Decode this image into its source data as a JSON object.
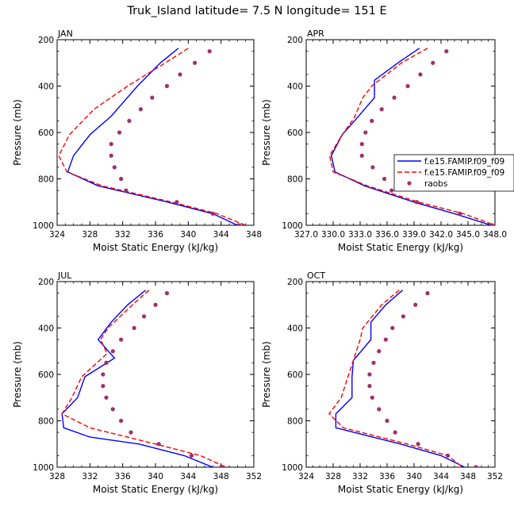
{
  "title": "Truk_Island  latitude= 7.5 N longitude= 151 E",
  "legend_labels": [
    "f.e15.FAMIP.f09_f09",
    "f.e15.FAMIP.f09_f09",
    "raobs"
  ],
  "colors": {
    "model1": "#0000ff",
    "model2": "#ff0000",
    "raobs": "#a0306a"
  },
  "chart_data": [
    {
      "type": "line",
      "panel": "JAN",
      "xlabel": "Moist Static Energy (kJ/kg)",
      "ylabel": "Pressure (mb)",
      "xlim": [
        324,
        348
      ],
      "xticks": [
        324,
        328,
        332,
        336,
        340,
        344,
        348
      ],
      "xtick_labels": [
        "324",
        "328",
        "332",
        "336",
        "340",
        "344",
        "348"
      ],
      "ylim": [
        200,
        1000
      ],
      "yticks": [
        200,
        400,
        600,
        800,
        1000
      ],
      "series": [
        {
          "name": "f.e15.FAMIP.f09_f09",
          "style": "solid",
          "p": [
            237,
            300,
            400,
            530,
            610,
            700,
            770,
            830,
            900,
            950,
            1000
          ],
          "mse": [
            338.8,
            336.6,
            333.8,
            330.6,
            328.0,
            326.0,
            325.3,
            329.0,
            337.5,
            343.0,
            346.0
          ]
        },
        {
          "name": "f.e15.FAMIP.f09_f09",
          "style": "dashed",
          "p": [
            237,
            300,
            400,
            500,
            610,
            700,
            770,
            830,
            900,
            950,
            1000
          ],
          "mse": [
            340.0,
            337.2,
            332.6,
            328.5,
            325.5,
            324.2,
            325.2,
            329.5,
            338.0,
            343.5,
            347.0
          ]
        },
        {
          "name": "raobs",
          "style": "dots",
          "p": [
            250,
            300,
            350,
            400,
            450,
            500,
            550,
            600,
            650,
            700,
            750,
            800,
            850,
            900,
            950,
            1000
          ],
          "mse": [
            342.6,
            340.8,
            339.0,
            337.4,
            335.6,
            334.2,
            332.8,
            331.6,
            330.6,
            330.6,
            331.0,
            331.8,
            332.4,
            338.6,
            343.0,
            346.2
          ]
        }
      ]
    },
    {
      "type": "line",
      "panel": "APR",
      "xlabel": "Moist Static Energy (kJ/kg)",
      "ylabel": "Pressure (mb)",
      "xlim": [
        327,
        348
      ],
      "xticks": [
        327,
        330,
        333,
        336,
        339,
        342,
        345,
        348
      ],
      "xtick_labels": [
        "327.0",
        "330.0",
        "333.0",
        "336.0",
        "339.0",
        "342.0",
        "345.0",
        "348.0"
      ],
      "ylim": [
        200,
        1000
      ],
      "yticks": [
        200,
        400,
        600,
        800,
        1000
      ],
      "series": [
        {
          "name": "f.e15.FAMIP.f09_f09",
          "style": "solid",
          "p": [
            237,
            300,
            375,
            450,
            540,
            610,
            700,
            770,
            830,
            900,
            950,
            1000
          ],
          "mse": [
            339.6,
            337.2,
            334.6,
            334.6,
            332.6,
            331.0,
            329.8,
            330.2,
            333.5,
            339.0,
            343.5,
            347.6
          ]
        },
        {
          "name": "f.e15.FAMIP.f09_f09",
          "style": "dashed",
          "p": [
            237,
            300,
            400,
            450,
            540,
            610,
            700,
            770,
            830,
            900,
            950,
            1000
          ],
          "mse": [
            340.5,
            337.6,
            334.3,
            333.3,
            332.3,
            331.0,
            329.6,
            330.0,
            333.8,
            339.5,
            344.5,
            348.0
          ]
        },
        {
          "name": "raobs",
          "style": "dots",
          "p": [
            250,
            300,
            350,
            400,
            450,
            500,
            550,
            600,
            650,
            700,
            750,
            800,
            850,
            900,
            950,
            1000
          ],
          "mse": [
            342.6,
            341.1,
            339.7,
            338.3,
            336.8,
            335.4,
            334.3,
            333.6,
            333.2,
            333.2,
            334.4,
            335.7,
            336.5,
            339.3,
            344.1,
            347.7
          ]
        }
      ]
    },
    {
      "type": "line",
      "panel": "JUL",
      "xlabel": "Moist Static Energy (kJ/kg)",
      "ylabel": "Pressure (mb)",
      "xlim": [
        328,
        352
      ],
      "xticks": [
        328,
        332,
        336,
        340,
        344,
        348,
        352
      ],
      "xtick_labels": [
        "328",
        "332",
        "336",
        "340",
        "344",
        "348",
        "352"
      ],
      "ylim": [
        200,
        1000
      ],
      "yticks": [
        200,
        400,
        600,
        800,
        1000
      ],
      "series": [
        {
          "name": "f.e15.FAMIP.f09_f09",
          "style": "solid",
          "p": [
            237,
            300,
            375,
            450,
            530,
            610,
            700,
            770,
            830,
            870,
            900,
            950,
            1000
          ],
          "mse": [
            338.8,
            336.6,
            334.6,
            333.0,
            335.0,
            331.4,
            330.5,
            328.6,
            328.8,
            332.0,
            338.0,
            343.5,
            347.0
          ]
        },
        {
          "name": "f.e15.FAMIP.f09_f09",
          "style": "dashed",
          "p": [
            237,
            300,
            400,
            450,
            510,
            610,
            700,
            770,
            830,
            900,
            950,
            1000
          ],
          "mse": [
            339.2,
            337.2,
            334.2,
            333.3,
            334.1,
            331.0,
            329.8,
            328.6,
            332.0,
            340.0,
            345.5,
            348.6
          ]
        },
        {
          "name": "raobs",
          "style": "dots",
          "p": [
            250,
            300,
            350,
            400,
            450,
            500,
            550,
            600,
            650,
            700,
            750,
            800,
            850,
            900,
            950,
            1000
          ],
          "mse": [
            341.4,
            340.0,
            338.6,
            337.4,
            335.8,
            334.8,
            334.0,
            333.6,
            333.6,
            334.0,
            334.8,
            335.8,
            337.0,
            340.4,
            344.4,
            348.0
          ]
        }
      ]
    },
    {
      "type": "line",
      "panel": "OCT",
      "xlabel": "Moist Static Energy (kJ/kg)",
      "ylabel": "Pressure (mb)",
      "xlim": [
        324,
        352
      ],
      "xticks": [
        324,
        328,
        332,
        336,
        340,
        344,
        348,
        352
      ],
      "xtick_labels": [
        "324",
        "328",
        "332",
        "336",
        "340",
        "344",
        "348",
        "352"
      ],
      "ylim": [
        200,
        1000
      ],
      "yticks": [
        200,
        400,
        600,
        800,
        1000
      ],
      "series": [
        {
          "name": "f.e15.FAMIP.f09_f09",
          "style": "solid",
          "p": [
            237,
            300,
            375,
            450,
            540,
            610,
            700,
            770,
            830,
            900,
            950,
            1000
          ],
          "mse": [
            338.3,
            335.8,
            333.6,
            333.6,
            331.0,
            330.8,
            330.8,
            328.4,
            328.4,
            338.0,
            344.0,
            347.5
          ]
        },
        {
          "name": "f.e15.FAMIP.f09_f09",
          "style": "dashed",
          "p": [
            237,
            300,
            400,
            450,
            540,
            610,
            700,
            770,
            830,
            900,
            950,
            1000
          ],
          "mse": [
            337.8,
            335.2,
            332.4,
            332.0,
            331.0,
            330.2,
            329.2,
            327.4,
            329.5,
            339.0,
            345.0,
            347.2
          ]
        },
        {
          "name": "raobs",
          "style": "dots",
          "p": [
            250,
            300,
            350,
            400,
            450,
            500,
            550,
            600,
            650,
            700,
            750,
            800,
            850,
            900,
            950,
            1000
          ],
          "mse": [
            342.0,
            340.2,
            338.4,
            336.8,
            335.8,
            334.8,
            334.0,
            333.4,
            333.4,
            333.8,
            334.8,
            336.0,
            337.2,
            340.6,
            345.0,
            349.2
          ]
        }
      ]
    }
  ]
}
